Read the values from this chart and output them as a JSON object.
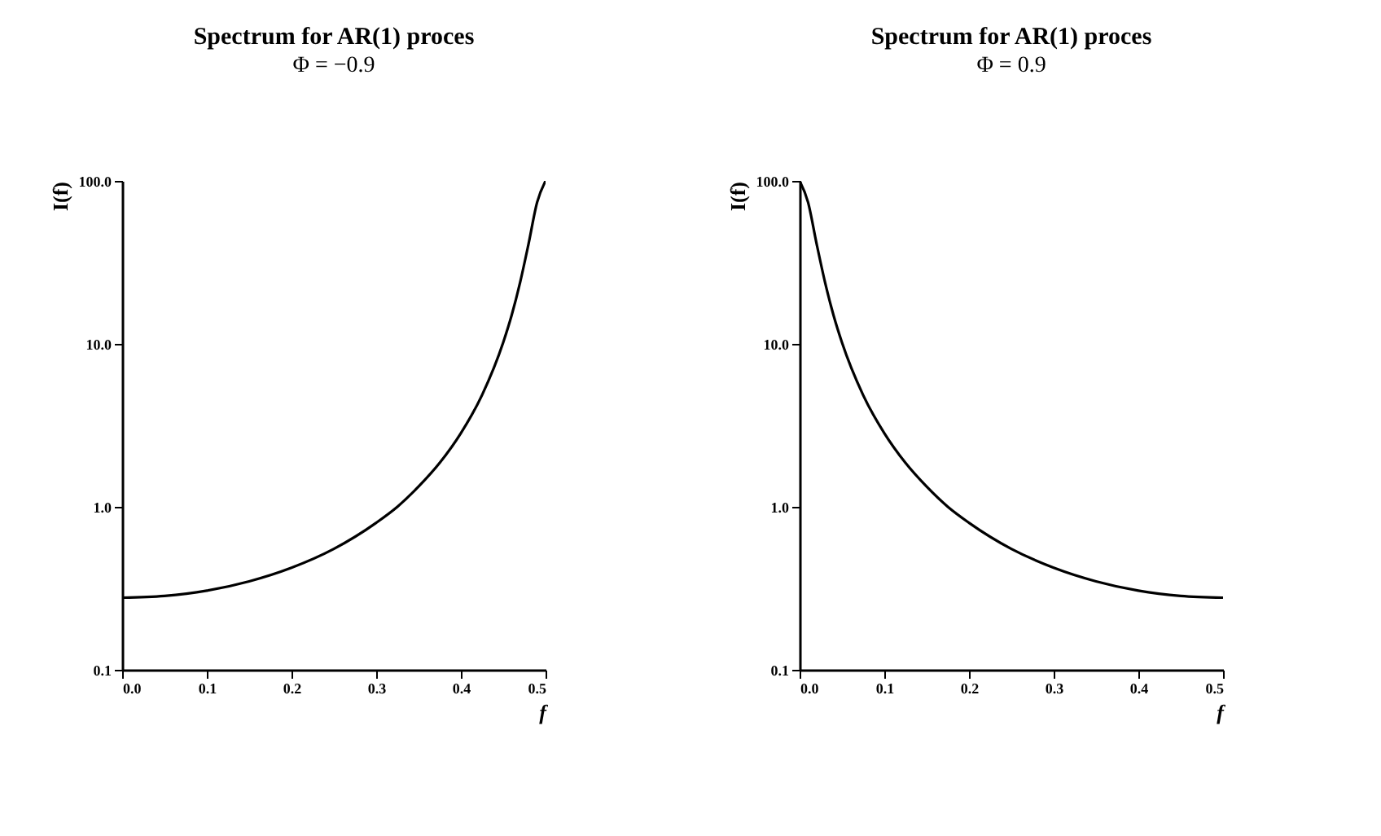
{
  "chart_data": [
    {
      "type": "line",
      "title": "Spectrum for AR(1) proces",
      "subtitle": "Φ = −0.9",
      "xlabel": "f",
      "ylabel": "I(f)",
      "log": true,
      "grid": false,
      "marker": "none",
      "line_style": "solid",
      "x": [
        0,
        0.05,
        0.1,
        0.15,
        0.2,
        0.25,
        0.3,
        0.325,
        0.35,
        0.375,
        0.4,
        0.425,
        0.45,
        0.46,
        0.47,
        0.48,
        0.49,
        0.5
      ],
      "series": [
        {
          "color": "#000000",
          "values": [
            0.277,
            0.284,
            0.306,
            0.349,
            0.423,
            0.552,
            0.798,
            1.0,
            1.33,
            1.86,
            2.83,
            4.85,
            10.2,
            15.0,
            23.9,
            41.3,
            73.8,
            100
          ]
        }
      ],
      "xlim": [
        0,
        0.5
      ],
      "xticks": [
        {
          "value": 0,
          "label": "0.0"
        },
        0.1,
        0.2,
        0.3,
        0.4,
        0.5
      ],
      "ylim": [
        0.1,
        100
      ],
      "yticks": [
        0.1,
        {
          "value": 1,
          "label": "1.0"
        },
        {
          "value": 10,
          "label": "10.0"
        },
        {
          "value": 100,
          "label": "100.0"
        }
      ]
    },
    {
      "type": "line",
      "title": "Spectrum for AR(1) proces",
      "subtitle": "Φ = 0.9",
      "xlabel": "f",
      "ylabel": "I(f)",
      "log": true,
      "grid": false,
      "marker": "none",
      "line_style": "solid",
      "x": [
        0,
        0.01,
        0.02,
        0.03,
        0.04,
        0.05,
        0.075,
        0.1,
        0.125,
        0.15,
        0.175,
        0.2,
        0.25,
        0.3,
        0.35,
        0.4,
        0.45,
        0.5
      ],
      "series": [
        {
          "color": "#000000",
          "values": [
            100,
            73.8,
            41.3,
            23.9,
            15.0,
            10.2,
            4.85,
            2.83,
            1.86,
            1.33,
            1.0,
            0.798,
            0.552,
            0.423,
            0.349,
            0.306,
            0.284,
            0.277
          ]
        }
      ],
      "xlim": [
        0,
        0.5
      ],
      "xticks": [
        {
          "value": 0,
          "label": "0.0"
        },
        0.1,
        0.2,
        0.3,
        0.4,
        0.5
      ],
      "ylim": [
        0.1,
        100
      ],
      "yticks": [
        0.1,
        {
          "value": 1,
          "label": "1.0"
        },
        {
          "value": 10,
          "label": "10.0"
        },
        {
          "value": 100,
          "label": "100.0"
        }
      ]
    }
  ]
}
